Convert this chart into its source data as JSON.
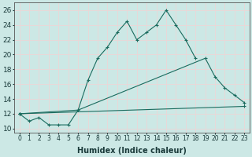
{
  "xlabel": "Humidex (Indice chaleur)",
  "background_color": "#cce8e5",
  "line_color": "#1a6b5e",
  "grid_color": "#e8d8d8",
  "xlim": [
    -0.5,
    23.5
  ],
  "ylim": [
    9.5,
    27.0
  ],
  "xticks": [
    0,
    1,
    2,
    3,
    4,
    5,
    6,
    7,
    8,
    9,
    10,
    11,
    12,
    13,
    14,
    15,
    16,
    17,
    18,
    19,
    20,
    21,
    22,
    23
  ],
  "yticks": [
    10,
    12,
    14,
    16,
    18,
    20,
    22,
    24,
    26
  ],
  "series1_x": [
    0,
    1,
    2,
    3,
    4,
    5,
    6,
    7,
    8,
    9,
    10,
    11,
    12,
    13,
    14,
    15,
    16,
    17,
    18
  ],
  "series1_y": [
    12,
    11,
    11.5,
    10.5,
    10.5,
    10.5,
    12.5,
    16.5,
    19.5,
    21,
    23,
    24.5,
    22,
    23,
    24,
    26,
    24,
    22,
    19.5
  ],
  "series2_x": [
    0,
    6,
    19,
    20,
    21,
    22,
    23
  ],
  "series2_y": [
    12,
    12.5,
    19.5,
    17,
    15.5,
    14.5,
    13.5
  ],
  "series3_x": [
    0,
    23
  ],
  "series3_y": [
    12,
    13
  ],
  "xlabel_fontsize": 7,
  "tick_fontsize": 5.5,
  "ytick_fontsize": 6.5
}
